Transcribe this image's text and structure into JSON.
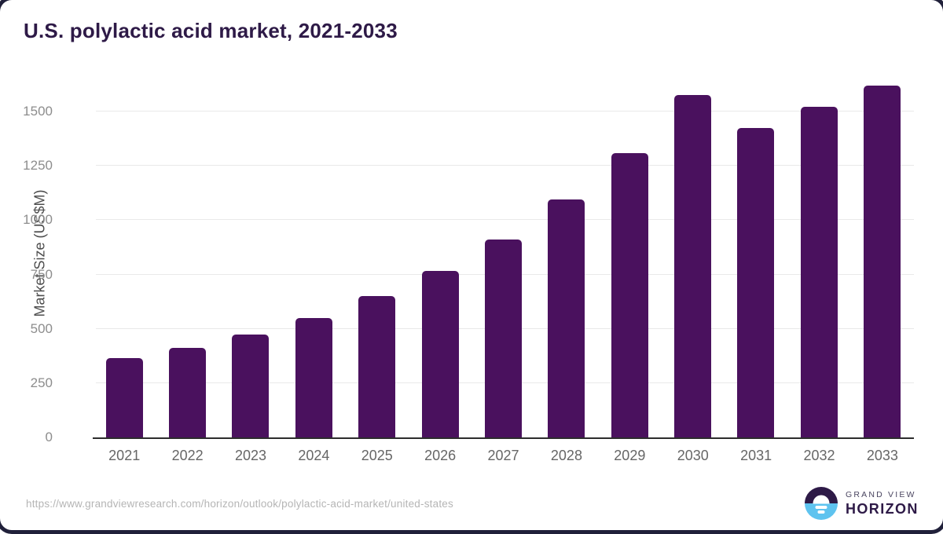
{
  "title": "U.S. polylactic acid market, 2021-2033",
  "footer": {
    "source_url": "https://www.grandviewresearch.com/horizon/outlook/polylactic-acid-market/united-states"
  },
  "logo": {
    "line_top": "GRAND VIEW",
    "line_bottom": "HORIZON"
  },
  "colors": {
    "bar": "#4a115e",
    "title_text": "#2e1a47",
    "axis_text": "#8d8d8d",
    "x_axis_text": "#666666",
    "gridline": "#e9e9e9",
    "baseline": "#2d2d2d",
    "logo_blue": "#5ec3ef",
    "logo_purple": "#2e1a47",
    "url_text": "#b5b5b5"
  },
  "chart_data": {
    "type": "bar",
    "title": "U.S. polylactic acid market, 2021-2033",
    "categories": [
      "2021",
      "2022",
      "2023",
      "2024",
      "2025",
      "2026",
      "2027",
      "2028",
      "2029",
      "2030",
      "2031",
      "2032",
      "2033"
    ],
    "values": [
      364,
      411,
      472,
      550,
      652,
      765,
      911,
      1095,
      1310,
      1575,
      1424,
      1521,
      1620
    ],
    "xlabel": "",
    "ylabel": "Market Size (US$M)",
    "ylim": [
      0,
      1500
    ],
    "ytick_step": 250,
    "yticks": [
      0,
      250,
      500,
      750,
      1000,
      1250,
      1500
    ],
    "grid": true,
    "legend": false,
    "bar_color": "#4a115e"
  }
}
